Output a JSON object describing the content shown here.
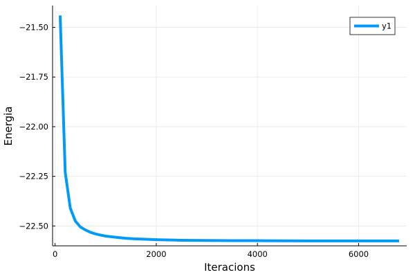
{
  "chart_data": {
    "type": "line",
    "title": "",
    "xlabel": "Iteracions",
    "ylabel": "Energia",
    "xlim": [
      -50,
      6950
    ],
    "ylim": [
      -22.6,
      -21.39
    ],
    "xticks": [
      0,
      2000,
      4000,
      6000
    ],
    "xtick_labels": [
      "0",
      "2000",
      "4000",
      "6000"
    ],
    "yticks": [
      -21.5,
      -21.75,
      -22.0,
      -22.25,
      -22.5
    ],
    "ytick_labels": [
      "−21.50",
      "−21.75",
      "−22.00",
      "−22.25",
      "−22.50"
    ],
    "grid": true,
    "legend_position": "top-right",
    "series": [
      {
        "name": "y1",
        "color": "#009AF9",
        "x": [
          100,
          200,
          300,
          400,
          500,
          600,
          700,
          800,
          900,
          1000,
          1200,
          1400,
          1600,
          1800,
          2000,
          2500,
          3000,
          3500,
          4000,
          5000,
          6000,
          6800
        ],
        "y": [
          -21.44,
          -22.23,
          -22.41,
          -22.475,
          -22.505,
          -22.52,
          -22.532,
          -22.54,
          -22.546,
          -22.551,
          -22.557,
          -22.562,
          -22.565,
          -22.567,
          -22.569,
          -22.572,
          -22.573,
          -22.574,
          -22.574,
          -22.575,
          -22.575,
          -22.575
        ]
      }
    ]
  }
}
